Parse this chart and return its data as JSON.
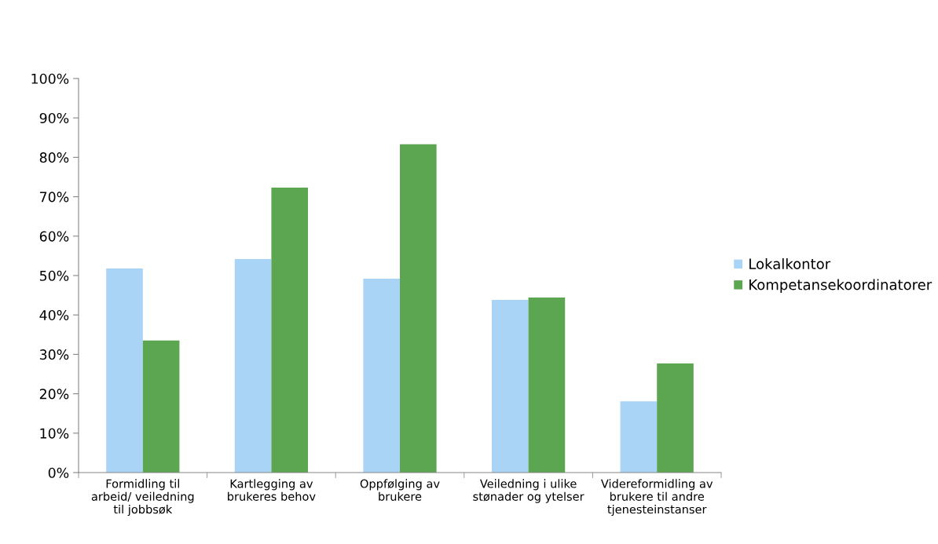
{
  "chart_data": {
    "type": "bar",
    "categories": [
      "Formidling til\narbeid/ veiledning\ntil jobbsøk",
      "Kartlegging av\nbrukeres behov",
      "Oppfølging av\nbrukere",
      "Veiledning i ulike\nstønader og ytelser",
      "Videreformidling av\nbrukere til andre\ntjenesteinstanser"
    ],
    "series": [
      {
        "name": "Lokalkontor",
        "color": "#a9d4f5",
        "values": [
          51.8,
          54.2,
          49.2,
          43.8,
          18.1
        ]
      },
      {
        "name": "Kompetansekoordinatorer",
        "color": "#5ca651",
        "values": [
          33.5,
          72.3,
          83.3,
          44.4,
          27.7
        ]
      }
    ],
    "ylim": [
      0,
      100
    ],
    "yticks": [
      {
        "value": 0,
        "label": "0%"
      },
      {
        "value": 10,
        "label": "10%"
      },
      {
        "value": 20,
        "label": "20%"
      },
      {
        "value": 30,
        "label": "30%"
      },
      {
        "value": 40,
        "label": "40%"
      },
      {
        "value": 50,
        "label": "50%"
      },
      {
        "value": 60,
        "label": "60%"
      },
      {
        "value": 70,
        "label": "70%"
      },
      {
        "value": 80,
        "label": "80%"
      },
      {
        "value": 90,
        "label": "90%"
      },
      {
        "value": 100,
        "label": "100%"
      }
    ],
    "grid": false,
    "legend": "right"
  }
}
